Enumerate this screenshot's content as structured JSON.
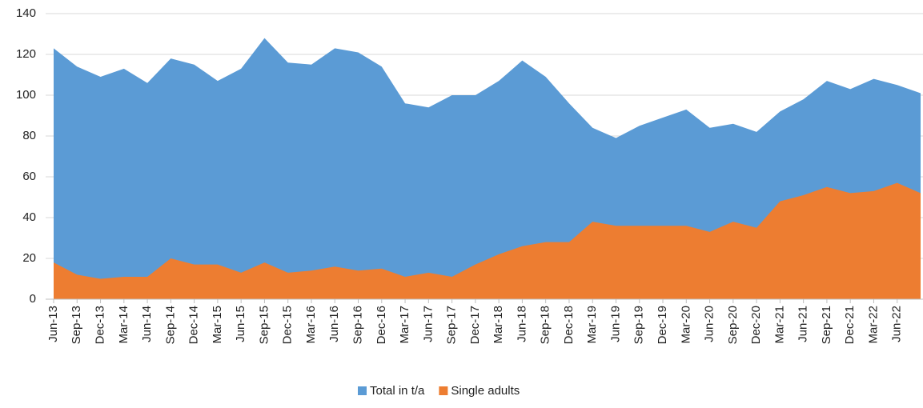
{
  "chart_data": {
    "type": "area",
    "categories": [
      "Jun-13",
      "Sep-13",
      "Dec-13",
      "Mar-14",
      "Jun-14",
      "Sep-14",
      "Dec-14",
      "Mar-15",
      "Jun-15",
      "Sep-15",
      "Dec-15",
      "Mar-16",
      "Jun-16",
      "Sep-16",
      "Dec-16",
      "Mar-17",
      "Jun-17",
      "Sep-17",
      "Dec-17",
      "Mar-18",
      "Jun-18",
      "Sep-18",
      "Dec-18",
      "Mar-19",
      "Jun-19",
      "Sep-19",
      "Dec-19",
      "Mar-20",
      "Jun-20",
      "Sep-20",
      "Dec-20",
      "Mar-21",
      "Jun-21",
      "Sep-21",
      "Dec-21",
      "Mar-22",
      "Jun-22",
      null
    ],
    "series": [
      {
        "name": "Total in t/a",
        "color": "#5b9bd5",
        "values": [
          123,
          114,
          109,
          113,
          106,
          118,
          115,
          107,
          113,
          128,
          116,
          115,
          123,
          121,
          114,
          96,
          94,
          100,
          100,
          107,
          117,
          109,
          96,
          84,
          79,
          85,
          89,
          93,
          84,
          86,
          82,
          92,
          98,
          107,
          103,
          108,
          105,
          101
        ]
      },
      {
        "name": "Single adults",
        "color": "#ed7d31",
        "values": [
          18,
          12,
          10,
          11,
          11,
          20,
          17,
          17,
          13,
          18,
          13,
          14,
          16,
          14,
          15,
          11,
          13,
          11,
          17,
          22,
          26,
          28,
          28,
          38,
          36,
          36,
          36,
          36,
          33,
          38,
          35,
          48,
          51,
          55,
          52,
          53,
          57,
          52
        ]
      }
    ],
    "ylim": [
      0,
      140
    ],
    "yticks": [
      0,
      20,
      40,
      60,
      80,
      100,
      120,
      140
    ],
    "grid": true,
    "legend": "bottom"
  }
}
